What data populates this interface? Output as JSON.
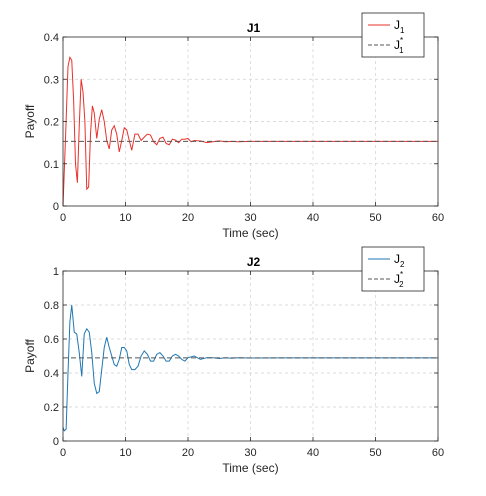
{
  "chart_data": [
    {
      "type": "line",
      "title": "J1",
      "xlabel": "Time (sec)",
      "ylabel": "Payoff",
      "xlim": [
        0,
        60
      ],
      "ylim": [
        0,
        0.4
      ],
      "xticks": [
        0,
        10,
        20,
        30,
        40,
        50,
        60
      ],
      "yticks": [
        0,
        0.1,
        0.2,
        0.3,
        0.4
      ],
      "ytick_labels": [
        "0",
        "0.1",
        "0.2",
        "0.3",
        "0.4"
      ],
      "grid": true,
      "legend_position": "top-right",
      "series": [
        {
          "name": "J",
          "name_sub": "1",
          "name_sup": "",
          "color": "#e8302a",
          "style": "solid",
          "x": [
            0,
            0.4,
            0.8,
            1.1,
            1.4,
            1.7,
            2.0,
            2.3,
            2.6,
            2.9,
            3.2,
            3.5,
            3.8,
            4.1,
            4.4,
            4.7,
            5.0,
            5.4,
            5.8,
            6.2,
            6.6,
            7.0,
            7.4,
            7.8,
            8.2,
            8.6,
            9.0,
            9.4,
            9.8,
            10.2,
            10.6,
            11.0,
            11.5,
            12.0,
            12.5,
            13.0,
            13.5,
            14.0,
            14.5,
            15.0,
            15.5,
            16.0,
            16.5,
            17.0,
            17.5,
            18.0,
            18.5,
            19.0,
            19.5,
            20.0,
            20.5,
            21.0,
            22.0,
            23.0,
            24.0,
            25.0,
            26.0,
            27.0,
            28.0,
            30.0,
            35.0,
            40.0,
            45.0,
            50.0,
            55.0,
            60.0
          ],
          "y": [
            0,
            0.16,
            0.33,
            0.352,
            0.345,
            0.25,
            0.1,
            0.055,
            0.19,
            0.3,
            0.27,
            0.2,
            0.04,
            0.045,
            0.17,
            0.237,
            0.22,
            0.16,
            0.205,
            0.228,
            0.2,
            0.155,
            0.135,
            0.18,
            0.19,
            0.17,
            0.128,
            0.155,
            0.185,
            0.18,
            0.155,
            0.132,
            0.17,
            0.17,
            0.155,
            0.163,
            0.17,
            0.168,
            0.152,
            0.145,
            0.16,
            0.163,
            0.148,
            0.145,
            0.158,
            0.156,
            0.15,
            0.158,
            0.158,
            0.16,
            0.152,
            0.155,
            0.154,
            0.15,
            0.152,
            0.154,
            0.152,
            0.153,
            0.152,
            0.153,
            0.153,
            0.153,
            0.153,
            0.153,
            0.153,
            0.153
          ]
        },
        {
          "name": "J",
          "name_sub": "1",
          "name_sup": "*",
          "color": "#555555",
          "style": "dashed",
          "x": [
            0,
            60
          ],
          "y": [
            0.153,
            0.153
          ]
        }
      ]
    },
    {
      "type": "line",
      "title": "J2",
      "xlabel": "Time (sec)",
      "ylabel": "Payoff",
      "xlim": [
        0,
        60
      ],
      "ylim": [
        0,
        1
      ],
      "xticks": [
        0,
        10,
        20,
        30,
        40,
        50,
        60
      ],
      "yticks": [
        0,
        0.2,
        0.4,
        0.6,
        0.8,
        1
      ],
      "ytick_labels": [
        "0",
        "0.2",
        "0.4",
        "0.6",
        "0.8",
        "1"
      ],
      "grid": true,
      "legend_position": "top-right",
      "series": [
        {
          "name": "J",
          "name_sub": "2",
          "name_sup": "",
          "color": "#1f77b4",
          "style": "solid",
          "x": [
            0,
            0.2,
            0.5,
            0.8,
            1.1,
            1.4,
            1.8,
            2.2,
            2.6,
            3.0,
            3.4,
            3.8,
            4.2,
            4.6,
            5.0,
            5.4,
            5.8,
            6.2,
            6.6,
            7.0,
            7.4,
            7.8,
            8.2,
            8.6,
            9.0,
            9.4,
            9.8,
            10.2,
            10.6,
            11.0,
            11.5,
            12.0,
            12.5,
            13.0,
            13.5,
            14.0,
            14.5,
            15.0,
            15.5,
            16.0,
            16.5,
            17.0,
            17.5,
            18.0,
            18.5,
            19.0,
            19.5,
            20.0,
            21.0,
            22.0,
            23.0,
            24.0,
            25.0,
            26.0,
            27.0,
            28.0,
            30.0,
            35.0,
            40.0,
            45.0,
            50.0,
            55.0,
            60.0
          ],
          "y": [
            0.08,
            0.06,
            0.07,
            0.4,
            0.7,
            0.8,
            0.64,
            0.63,
            0.52,
            0.38,
            0.63,
            0.66,
            0.64,
            0.52,
            0.34,
            0.28,
            0.29,
            0.42,
            0.55,
            0.61,
            0.55,
            0.5,
            0.45,
            0.44,
            0.48,
            0.55,
            0.55,
            0.53,
            0.45,
            0.42,
            0.42,
            0.44,
            0.5,
            0.53,
            0.51,
            0.47,
            0.47,
            0.51,
            0.52,
            0.5,
            0.47,
            0.47,
            0.5,
            0.51,
            0.5,
            0.48,
            0.47,
            0.49,
            0.5,
            0.48,
            0.49,
            0.49,
            0.485,
            0.49,
            0.487,
            0.49,
            0.488,
            0.489,
            0.489,
            0.489,
            0.489,
            0.489,
            0.489
          ]
        },
        {
          "name": "J",
          "name_sub": "2",
          "name_sup": "*",
          "color": "#555555",
          "style": "dashed",
          "x": [
            0,
            60
          ],
          "y": [
            0.489,
            0.489
          ]
        }
      ]
    }
  ]
}
